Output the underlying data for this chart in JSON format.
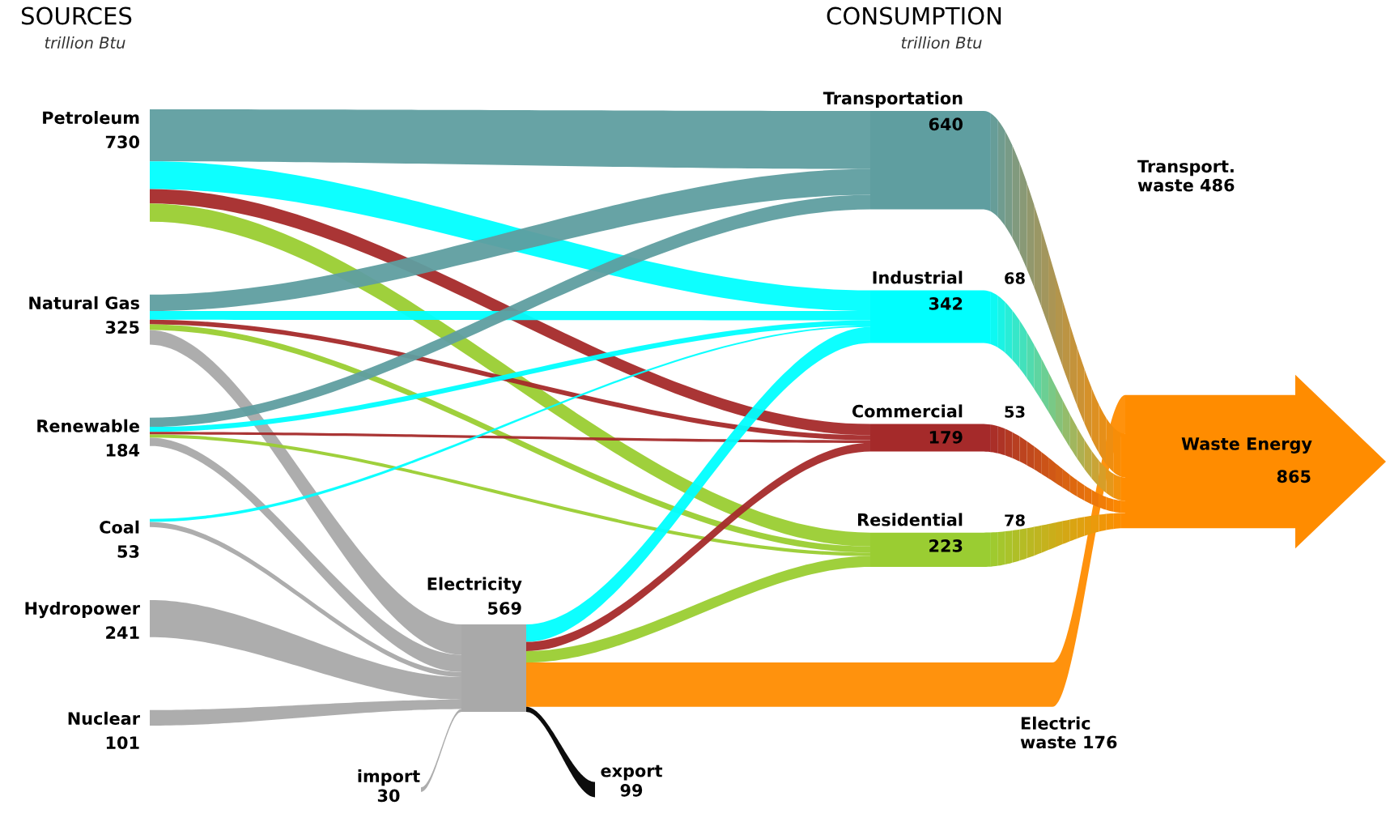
{
  "chart_data": {
    "type": "other",
    "title": "SOURCES",
    "subtitle": "trillion Btu",
    "categories": [
      "Petroleum",
      "Natural Gas",
      "Renewable",
      "Coal",
      "Hydropower",
      "Nuclear",
      "import",
      "Electricity",
      "export",
      "Transportation",
      "Industrial",
      "Commercial",
      "Residential",
      "Waste Energy"
    ],
    "data_labels": true,
    "values": [
      730,
      325,
      184,
      53,
      241,
      101,
      30,
      569,
      99,
      640,
      342,
      179,
      223,
      865
    ],
    "colors": [
      null,
      null,
      null,
      null,
      null,
      null,
      null,
      "#a9a9a9",
      "#000000",
      "#5f9ea0",
      "#00ffff",
      "#a52a2a",
      "#9acd32",
      "#ff8c00"
    ],
    "annotations": [
      "CONSUMPTION",
      "trillion Btu",
      "Transport.\nwaste 486",
      "68",
      "53",
      "78",
      "Electric\nwaste 176"
    ]
  }
}
